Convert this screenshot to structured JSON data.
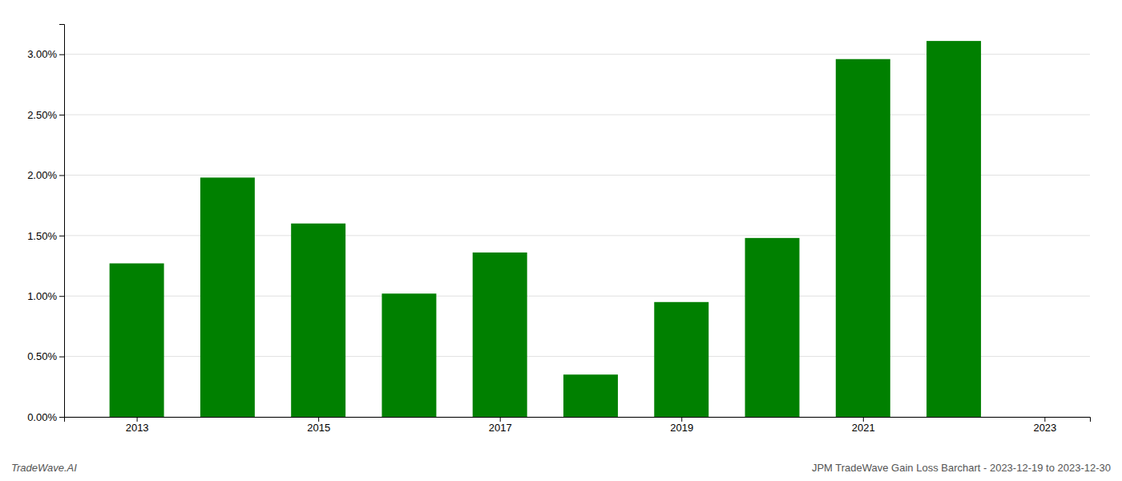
{
  "chart_data": {
    "type": "bar",
    "title": "JPM TradeWave Gain Loss Barchart - 2023-12-19 to 2023-12-30",
    "annotations": [
      "TradeWave.AI"
    ],
    "x": [
      2013,
      2014,
      2015,
      2016,
      2017,
      2018,
      2019,
      2020,
      2021,
      2022
    ],
    "values": [
      0.0127,
      0.0198,
      0.016,
      0.0102,
      0.0136,
      0.0035,
      0.0095,
      0.0148,
      0.0296,
      0.0311
    ],
    "color": "#008000",
    "xlim": [
      2012.2,
      2023.5
    ],
    "xticks": [
      2013,
      2015,
      2017,
      2019,
      2021,
      2023
    ],
    "ylim": [
      0.0,
      0.0325
    ],
    "yticks": [
      {
        "value": 0.0,
        "label": "0.00%"
      },
      {
        "value": 0.005,
        "label": "0.50%"
      },
      {
        "value": 0.01,
        "label": "1.00%"
      },
      {
        "value": 0.015,
        "label": "1.50%"
      },
      {
        "value": 0.02,
        "label": "2.00%"
      },
      {
        "value": 0.025,
        "label": "2.50%"
      },
      {
        "value": 0.03,
        "label": "3.00%"
      }
    ],
    "grid": true
  }
}
